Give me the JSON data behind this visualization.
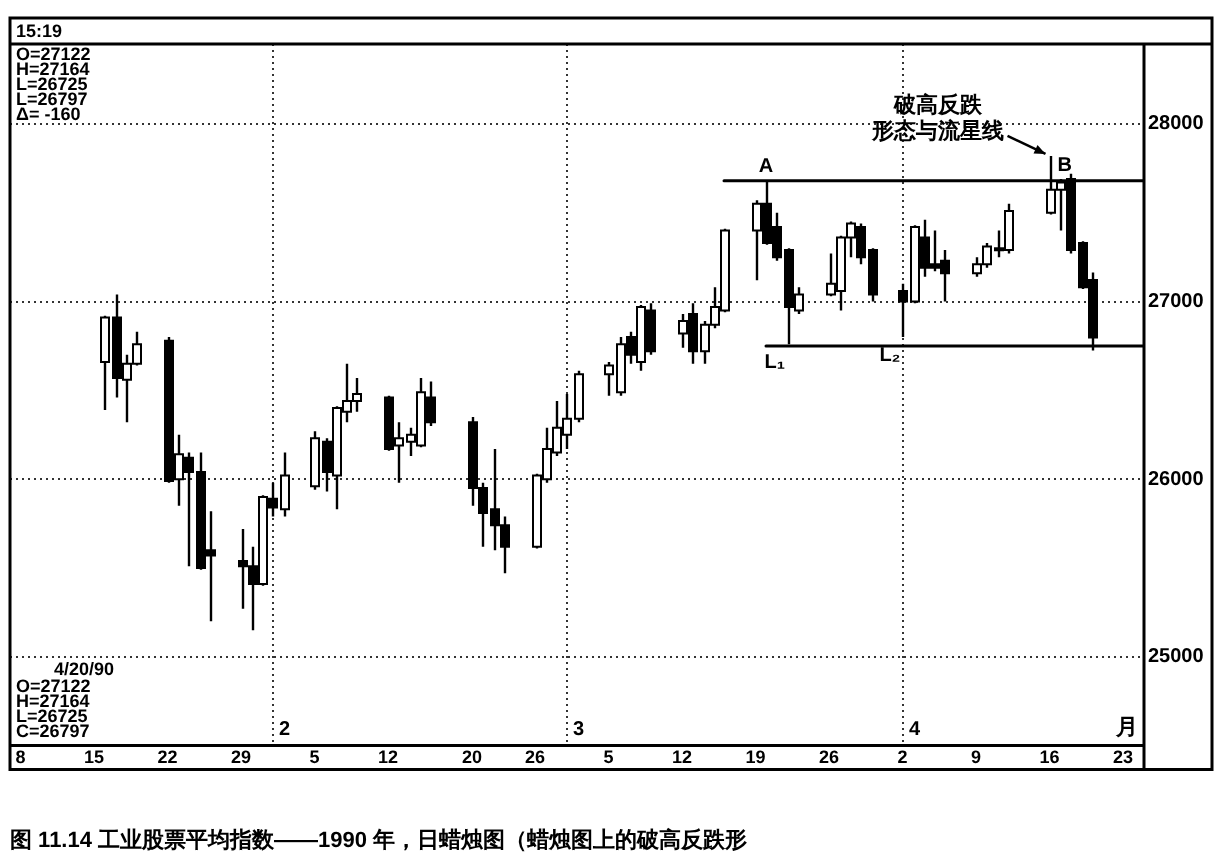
{
  "chart_data": {
    "type": "candlestick",
    "title": "图 11.14 工业股票平均指数——1990 年，日蜡烛图（蜡烛图上的破高反跌形",
    "color": "#000000",
    "x": [
      "1990-01-16",
      "1990-01-17",
      "1990-01-18",
      "1990-01-19",
      "1990-01-22",
      "1990-01-23",
      "1990-01-24",
      "1990-01-25",
      "1990-01-26",
      "1990-01-29",
      "1990-01-30",
      "1990-01-31",
      "1990-02-01",
      "1990-02-02",
      "1990-02-05",
      "1990-02-06",
      "1990-02-07",
      "1990-02-08",
      "1990-02-09",
      "1990-02-12",
      "1990-02-13",
      "1990-02-14",
      "1990-02-15",
      "1990-02-16",
      "1990-02-20",
      "1990-02-21",
      "1990-02-22",
      "1990-02-23",
      "1990-02-26",
      "1990-02-27",
      "1990-02-28",
      "1990-03-01",
      "1990-03-02",
      "1990-03-05",
      "1990-03-06",
      "1990-03-07",
      "1990-03-08",
      "1990-03-09",
      "1990-03-12",
      "1990-03-13",
      "1990-03-14",
      "1990-03-15",
      "1990-03-16",
      "1990-03-19",
      "1990-03-20",
      "1990-03-21",
      "1990-03-22",
      "1990-03-23",
      "1990-03-26",
      "1990-03-27",
      "1990-03-28",
      "1990-03-29",
      "1990-03-30",
      "1990-04-02",
      "1990-04-03",
      "1990-04-04",
      "1990-04-05",
      "1990-04-06",
      "1990-04-09",
      "1990-04-10",
      "1990-04-11",
      "1990-04-12",
      "1990-04-16",
      "1990-04-17",
      "1990-04-18",
      "1990-04-19",
      "1990-04-20"
    ],
    "ohlc": [
      [
        26660,
        26920,
        26390,
        26910
      ],
      [
        26910,
        27040,
        26460,
        26570
      ],
      [
        26560,
        26700,
        26320,
        26650
      ],
      [
        26650,
        26830,
        26640,
        26760
      ],
      [
        26780,
        26800,
        25980,
        25990
      ],
      [
        26000,
        26250,
        25850,
        26140
      ],
      [
        26120,
        26150,
        25510,
        26040
      ],
      [
        26040,
        26150,
        25490,
        25500
      ],
      [
        25600,
        25820,
        25200,
        25570
      ],
      [
        25540,
        25720,
        25270,
        25510
      ],
      [
        25510,
        25620,
        25150,
        25410
      ],
      [
        25410,
        25910,
        25400,
        25900
      ],
      [
        25890,
        25980,
        25790,
        25840
      ],
      [
        25830,
        26150,
        25790,
        26020
      ],
      [
        25960,
        26270,
        25940,
        26230
      ],
      [
        26210,
        26230,
        25930,
        26040
      ],
      [
        26020,
        26410,
        25830,
        26400
      ],
      [
        26380,
        26650,
        26320,
        26440
      ],
      [
        26440,
        26570,
        26380,
        26480
      ],
      [
        26460,
        26470,
        26160,
        26170
      ],
      [
        26190,
        26320,
        25980,
        26230
      ],
      [
        26210,
        26290,
        26130,
        26250
      ],
      [
        26190,
        26570,
        26180,
        26490
      ],
      [
        26460,
        26550,
        26300,
        26320
      ],
      [
        26320,
        26350,
        25850,
        25950
      ],
      [
        25950,
        25980,
        25620,
        25810
      ],
      [
        25830,
        26170,
        25600,
        25740
      ],
      [
        25740,
        25790,
        25470,
        25620
      ],
      [
        25620,
        26030,
        25610,
        26020
      ],
      [
        26000,
        26290,
        25980,
        26170
      ],
      [
        26150,
        26440,
        26130,
        26290
      ],
      [
        26250,
        26480,
        26170,
        26340
      ],
      [
        26340,
        26610,
        26320,
        26590
      ],
      [
        26590,
        26660,
        26470,
        26640
      ],
      [
        26490,
        26800,
        26470,
        26760
      ],
      [
        26800,
        26830,
        26650,
        26700
      ],
      [
        26660,
        26980,
        26610,
        26970
      ],
      [
        26950,
        26990,
        26700,
        26720
      ],
      [
        26820,
        26930,
        26740,
        26890
      ],
      [
        26930,
        26990,
        26650,
        26720
      ],
      [
        26720,
        26890,
        26650,
        26870
      ],
      [
        26870,
        27080,
        26850,
        26970
      ],
      [
        26950,
        27410,
        26940,
        27400
      ],
      [
        27400,
        27570,
        27120,
        27550
      ],
      [
        27550,
        27680,
        27320,
        27330
      ],
      [
        27420,
        27500,
        27230,
        27250
      ],
      [
        27290,
        27300,
        26760,
        26970
      ],
      [
        26950,
        27080,
        26930,
        27040
      ],
      [
        27040,
        27270,
        27030,
        27100
      ],
      [
        27060,
        27370,
        26950,
        27360
      ],
      [
        27360,
        27450,
        27250,
        27440
      ],
      [
        27420,
        27440,
        27210,
        27250
      ],
      [
        27290,
        27300,
        27000,
        27040
      ],
      [
        27060,
        27100,
        26800,
        27000
      ],
      [
        27000,
        27430,
        26990,
        27420
      ],
      [
        27360,
        27460,
        27140,
        27190
      ],
      [
        27210,
        27400,
        27170,
        27190
      ],
      [
        27230,
        27290,
        27000,
        27160
      ],
      [
        27160,
        27250,
        27140,
        27210
      ],
      [
        27210,
        27330,
        27190,
        27310
      ],
      [
        27290,
        27400,
        27250,
        27300
      ],
      [
        27290,
        27550,
        27270,
        27510
      ],
      [
        27500,
        27820,
        27490,
        27630
      ],
      [
        27630,
        27690,
        27400,
        27670
      ],
      [
        27690,
        27720,
        27270,
        27290
      ],
      [
        27330,
        27340,
        27070,
        27080
      ],
      [
        27122,
        27164,
        26725,
        26797
      ]
    ],
    "colors": [
      "#ffffff",
      "#000000",
      "#ffffff",
      "#ffffff",
      "#000000",
      "#ffffff",
      "#000000",
      "#000000",
      "#000000",
      "#000000",
      "#000000",
      "#ffffff",
      "#000000",
      "#ffffff",
      "#ffffff",
      "#000000",
      "#ffffff",
      "#ffffff",
      "#ffffff",
      "#000000",
      "#ffffff",
      "#ffffff",
      "#ffffff",
      "#000000",
      "#000000",
      "#000000",
      "#000000",
      "#000000",
      "#ffffff",
      "#ffffff",
      "#ffffff",
      "#ffffff",
      "#ffffff",
      "#ffffff",
      "#ffffff",
      "#000000",
      "#ffffff",
      "#000000",
      "#ffffff",
      "#000000",
      "#ffffff",
      "#ffffff",
      "#ffffff",
      "#ffffff",
      "#000000",
      "#000000",
      "#000000",
      "#ffffff",
      "#ffffff",
      "#ffffff",
      "#ffffff",
      "#000000",
      "#000000",
      "#000000",
      "#ffffff",
      "#000000",
      "#000000",
      "#000000",
      "#ffffff",
      "#ffffff",
      "#ffffff",
      "#ffffff",
      "#ffffff",
      "#ffffff",
      "#000000",
      "#000000",
      "#000000"
    ],
    "series": [
      {
        "type": "line",
        "x": [
          "1990-03-16",
          "1990-04-25"
        ],
        "values": [
          27680,
          27680
        ],
        "color": "#000000"
      },
      {
        "type": "line",
        "x": [
          "1990-03-20",
          "1990-04-25"
        ],
        "values": [
          26750,
          26750
        ],
        "color": "#000000"
      }
    ],
    "xlim": [
      "1990-01-07",
      "1990-04-25"
    ],
    "xticks": [
      {
        "value": "1990-01-08",
        "label": "8"
      },
      {
        "value": "1990-01-15",
        "label": "15"
      },
      {
        "value": "1990-01-22",
        "label": "22"
      },
      {
        "value": "1990-01-29",
        "label": "29"
      },
      {
        "value": "1990-02-05",
        "label": "5"
      },
      {
        "value": "1990-02-12",
        "label": "12"
      },
      {
        "value": "1990-02-20",
        "label": "20"
      },
      {
        "value": "1990-02-26",
        "label": "26"
      },
      {
        "value": "1990-03-05",
        "label": "5"
      },
      {
        "value": "1990-03-12",
        "label": "12"
      },
      {
        "value": "1990-03-19",
        "label": "19"
      },
      {
        "value": "1990-03-26",
        "label": "26"
      },
      {
        "value": "1990-04-02",
        "label": "2"
      },
      {
        "value": "1990-04-09",
        "label": "9"
      },
      {
        "value": "1990-04-16",
        "label": "16"
      },
      {
        "value": "1990-04-23",
        "label": "23"
      }
    ],
    "ylim": [
      24500,
      28450
    ],
    "yticks": [
      25000,
      26000,
      27000,
      28000
    ],
    "grid": "y",
    "ref_lines": [
      {
        "axis": "x",
        "value": "1990-02-01",
        "label": "2",
        "line_style": "dotted"
      },
      {
        "axis": "x",
        "value": "1990-03-01",
        "label": "3",
        "line_style": "dotted"
      },
      {
        "axis": "x",
        "value": "1990-04-02",
        "label": "4",
        "line_style": "dotted"
      }
    ],
    "annotations": [
      "15:19",
      "O=27122",
      "H=27164",
      "L=26725",
      "L=26797",
      "Δ= -160",
      "4/20/90",
      "O=27122",
      "H=27164",
      "L=26725",
      "C=26797",
      "月",
      {
        "text": "A",
        "x": "1990-03-20",
        "y": 27680
      },
      {
        "text": "B",
        "x": "1990-04-16",
        "y": 27820
      },
      {
        "text": "L₁",
        "x": "1990-03-22",
        "y": 26760
      },
      {
        "text": "L₂",
        "x": "1990-04-02",
        "y": 26800
      },
      {
        "text": "破高反跌形态与流星线",
        "x": "1990-04-16",
        "y": 27820
      }
    ]
  }
}
